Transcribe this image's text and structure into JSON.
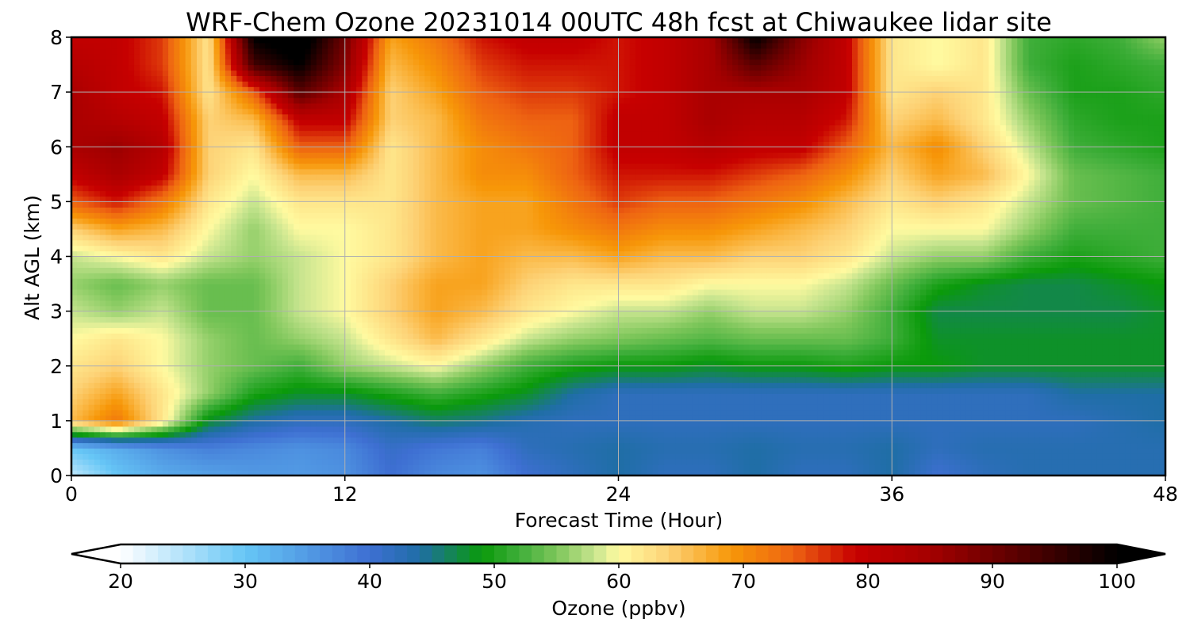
{
  "chart_data": {
    "type": "heatmap",
    "title": "WRF-Chem Ozone  20231014 00UTC 48h fcst at Chiwaukee lidar site",
    "xlabel": "Forecast Time (Hour)",
    "ylabel": "Alt AGL (km)",
    "xlim": [
      0,
      48
    ],
    "ylim": [
      0,
      8
    ],
    "xticks": [
      0,
      12,
      24,
      36,
      48
    ],
    "yticks": [
      0,
      1,
      2,
      3,
      4,
      5,
      6,
      7,
      8
    ],
    "grid": true,
    "x": [
      0,
      2,
      4,
      6,
      8,
      10,
      12,
      14,
      16,
      18,
      20,
      22,
      24,
      26,
      28,
      30,
      32,
      34,
      36,
      38,
      40,
      42,
      44,
      46,
      48
    ],
    "y": [
      0,
      0.5,
      1,
      1.5,
      2,
      2.5,
      3,
      3.5,
      4,
      4.5,
      5,
      5.5,
      6,
      6.5,
      7,
      7.5,
      8
    ],
    "z": [
      [
        24,
        30,
        33,
        34,
        35,
        35,
        36,
        40,
        37,
        36,
        40,
        42,
        44,
        42,
        42,
        44,
        42,
        42,
        44,
        40,
        42,
        43,
        43,
        43,
        43
      ],
      [
        30,
        33,
        36,
        38,
        37,
        36,
        37,
        41,
        39,
        38,
        42,
        43,
        44,
        43,
        43,
        44,
        43,
        43,
        44,
        42,
        43,
        43,
        43,
        43,
        43
      ],
      [
        66,
        72,
        62,
        48,
        44,
        42,
        42,
        44,
        46,
        45,
        43,
        42,
        42,
        42,
        42,
        42,
        42,
        42,
        42,
        42,
        42,
        42,
        42,
        43,
        44
      ],
      [
        64,
        68,
        62,
        56,
        50,
        48,
        48,
        50,
        52,
        50,
        48,
        44,
        42,
        42,
        42,
        42,
        42,
        42,
        42,
        42,
        42,
        42,
        44,
        44,
        44
      ],
      [
        62,
        64,
        60,
        56,
        54,
        52,
        56,
        58,
        60,
        56,
        52,
        50,
        49,
        49,
        48,
        49,
        49,
        50,
        49,
        49,
        48,
        48,
        48,
        48,
        48
      ],
      [
        60,
        62,
        60,
        56,
        54,
        56,
        58,
        62,
        66,
        62,
        58,
        56,
        55,
        54,
        53,
        54,
        54,
        54,
        52,
        48,
        48,
        48,
        48,
        48,
        48
      ],
      [
        58,
        56,
        58,
        54,
        54,
        58,
        60,
        64,
        68,
        66,
        62,
        60,
        58,
        58,
        56,
        58,
        58,
        56,
        52,
        47,
        47,
        47,
        47,
        47,
        48
      ],
      [
        56,
        54,
        56,
        54,
        54,
        58,
        60,
        64,
        68,
        68,
        64,
        62,
        62,
        62,
        60,
        60,
        60,
        58,
        54,
        50,
        48,
        47,
        47,
        48,
        49
      ],
      [
        58,
        60,
        62,
        58,
        56,
        58,
        60,
        62,
        66,
        68,
        66,
        66,
        68,
        66,
        66,
        64,
        64,
        62,
        58,
        56,
        56,
        52,
        50,
        51,
        52
      ],
      [
        64,
        68,
        66,
        60,
        56,
        60,
        60,
        62,
        66,
        68,
        68,
        70,
        72,
        70,
        70,
        68,
        66,
        64,
        60,
        60,
        60,
        56,
        52,
        52,
        52
      ],
      [
        74,
        78,
        72,
        62,
        58,
        62,
        62,
        62,
        66,
        68,
        68,
        72,
        76,
        74,
        74,
        72,
        70,
        66,
        62,
        64,
        62,
        58,
        54,
        53,
        52
      ],
      [
        80,
        84,
        80,
        64,
        60,
        66,
        66,
        62,
        66,
        70,
        70,
        74,
        78,
        78,
        78,
        76,
        74,
        70,
        64,
        68,
        66,
        60,
        54,
        53,
        52
      ],
      [
        84,
        86,
        82,
        64,
        62,
        74,
        74,
        62,
        66,
        70,
        72,
        74,
        80,
        80,
        82,
        80,
        80,
        74,
        66,
        70,
        64,
        58,
        52,
        51,
        50
      ],
      [
        84,
        82,
        80,
        64,
        66,
        80,
        80,
        64,
        66,
        72,
        74,
        74,
        80,
        80,
        84,
        82,
        82,
        78,
        64,
        66,
        62,
        56,
        51,
        50,
        50
      ],
      [
        84,
        80,
        78,
        62,
        74,
        92,
        84,
        64,
        68,
        74,
        76,
        76,
        78,
        80,
        84,
        84,
        84,
        80,
        62,
        64,
        62,
        54,
        50,
        50,
        51
      ],
      [
        82,
        80,
        76,
        62,
        94,
        100,
        88,
        66,
        70,
        76,
        78,
        78,
        78,
        80,
        84,
        92,
        86,
        80,
        62,
        60,
        62,
        52,
        50,
        51,
        52
      ],
      [
        80,
        80,
        76,
        62,
        100,
        104,
        90,
        68,
        72,
        78,
        80,
        80,
        78,
        80,
        84,
        100,
        88,
        80,
        62,
        60,
        62,
        52,
        51,
        52,
        56
      ]
    ],
    "colorbar": {
      "label": "Ozone  (ppbv)",
      "min": 20,
      "max": 100,
      "ticks": [
        20,
        30,
        40,
        50,
        60,
        70,
        80,
        90,
        100
      ],
      "extend": "both",
      "stops": [
        [
          20,
          "#ffffff"
        ],
        [
          30,
          "#66c6f6"
        ],
        [
          40,
          "#3e6fd2"
        ],
        [
          44,
          "#1f6ea6"
        ],
        [
          49,
          "#0a9a0a"
        ],
        [
          52,
          "#3fae3a"
        ],
        [
          55,
          "#7dc65a"
        ],
        [
          58,
          "#c6e48e"
        ],
        [
          60,
          "#fffaa0"
        ],
        [
          64,
          "#fdd276"
        ],
        [
          69,
          "#f79708"
        ],
        [
          74,
          "#ee6312"
        ],
        [
          79,
          "#c70000"
        ],
        [
          85,
          "#a40000"
        ],
        [
          92,
          "#5a0000"
        ],
        [
          100,
          "#000000"
        ]
      ]
    }
  }
}
